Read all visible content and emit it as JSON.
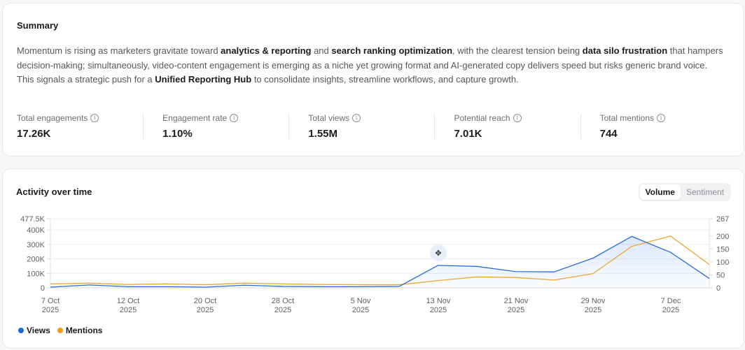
{
  "summary": {
    "title": "Summary",
    "text_segments": [
      {
        "t": "Momentum is rising as marketers gravitate toward ",
        "b": false
      },
      {
        "t": "analytics & reporting",
        "b": true
      },
      {
        "t": " and ",
        "b": false
      },
      {
        "t": "search ranking optimization",
        "b": true
      },
      {
        "t": ", with the clearest tension being ",
        "b": false
      },
      {
        "t": "data silo frustration",
        "b": true
      },
      {
        "t": " that hampers decision-making; simultaneously, video-content engagement is emerging as a niche yet growing format and AI-generated copy delivers speed but risks generic brand voice. This signals a strategic push for a ",
        "b": false
      },
      {
        "t": "Unified Reporting Hub",
        "b": true
      },
      {
        "t": " to consolidate insights, streamline workflows, and capture growth.",
        "b": false
      }
    ],
    "metrics": [
      {
        "label": "Total engagements",
        "value": "17.26K",
        "icon": "info-icon"
      },
      {
        "label": "Engagement rate",
        "value": "1.10%",
        "icon": "info-icon"
      },
      {
        "label": "Total views",
        "value": "1.55M",
        "icon": "info-icon"
      },
      {
        "label": "Potential reach",
        "value": "7.01K",
        "icon": "info-icon"
      },
      {
        "label": "Total mentions",
        "value": "744",
        "icon": "info-icon"
      }
    ]
  },
  "activity": {
    "title": "Activity over time",
    "toggle": {
      "options": [
        "Volume",
        "Sentiment"
      ],
      "selected": "Volume"
    },
    "legend": [
      {
        "label": "Views",
        "color": "#1f66e5"
      },
      {
        "label": "Mentions",
        "color": "#f29a12"
      }
    ],
    "cursor_icon": "move-cursor-icon"
  },
  "chart_data": {
    "type": "line",
    "title": "Activity over time",
    "xlabel": "",
    "ylabel": "Views",
    "y2label": "Mentions",
    "x_tick_labels": [
      [
        "7 Oct",
        "2025"
      ],
      [
        "12 Oct",
        "2025"
      ],
      [
        "20 Oct",
        "2025"
      ],
      [
        "28 Oct",
        "2025"
      ],
      [
        "5 Nov",
        "2025"
      ],
      [
        "13 Nov",
        "2025"
      ],
      [
        "21 Nov",
        "2025"
      ],
      [
        "29 Nov",
        "2025"
      ],
      [
        "7 Dec",
        "2025"
      ]
    ],
    "y_ticks_left": [
      "0",
      "100K",
      "200K",
      "300K",
      "400K",
      "477.5K"
    ],
    "y_ticks_right": [
      "0",
      "50",
      "100",
      "150",
      "200",
      "267"
    ],
    "ylim": [
      0,
      477500
    ],
    "y2lim": [
      0,
      267
    ],
    "grid": true,
    "legend_position": "bottom-left",
    "x_index_count": 18,
    "series": [
      {
        "name": "Views",
        "axis": "left",
        "color": "#2a6bd6",
        "values": [
          5000,
          20000,
          8000,
          8000,
          5000,
          18000,
          10000,
          8000,
          8000,
          10000,
          155000,
          148000,
          112000,
          110000,
          205000,
          355000,
          245000,
          65000
        ]
      },
      {
        "name": "Mentions",
        "axis": "right",
        "color": "#eda532",
        "values": [
          15,
          18,
          13,
          15,
          12,
          18,
          15,
          13,
          12,
          12,
          28,
          42,
          40,
          30,
          55,
          160,
          200,
          90
        ]
      }
    ]
  }
}
